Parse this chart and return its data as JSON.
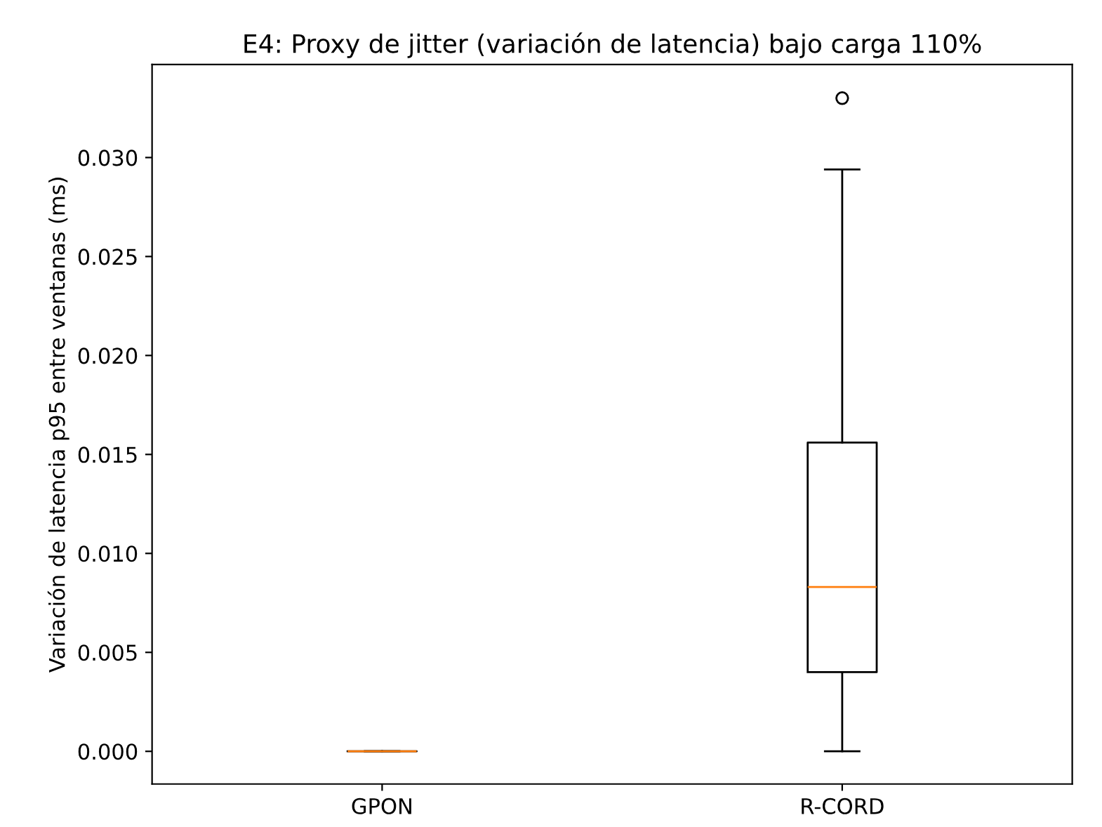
{
  "chart_data": {
    "type": "box",
    "title": "E4: Proxy de jitter (variación de latencia) bajo carga 110%",
    "ylabel": "Variación de latencia p95 entre ventanas (ms)",
    "categories": [
      "GPON",
      "R-CORD"
    ],
    "boxes": [
      {
        "low": 0,
        "q1": 0,
        "median": 0,
        "q3": 0,
        "high": 0
      },
      {
        "low": 0,
        "q1": 0.004,
        "median": 0.0083,
        "q3": 0.0156,
        "high": 0.0294,
        "outliers": [
          0.033
        ]
      }
    ],
    "color": "#000000",
    "ylim": [
      -0.00165,
      0.0347
    ],
    "yticks": [
      {
        "value": 0,
        "label": "0.000"
      },
      {
        "value": 0.005,
        "label": "0.005"
      },
      {
        "value": 0.01,
        "label": "0.010"
      },
      {
        "value": 0.015,
        "label": "0.015"
      },
      {
        "value": 0.02,
        "label": "0.020"
      },
      {
        "value": 0.025,
        "label": "0.025"
      },
      {
        "value": 0.03,
        "label": "0.030"
      }
    ]
  }
}
